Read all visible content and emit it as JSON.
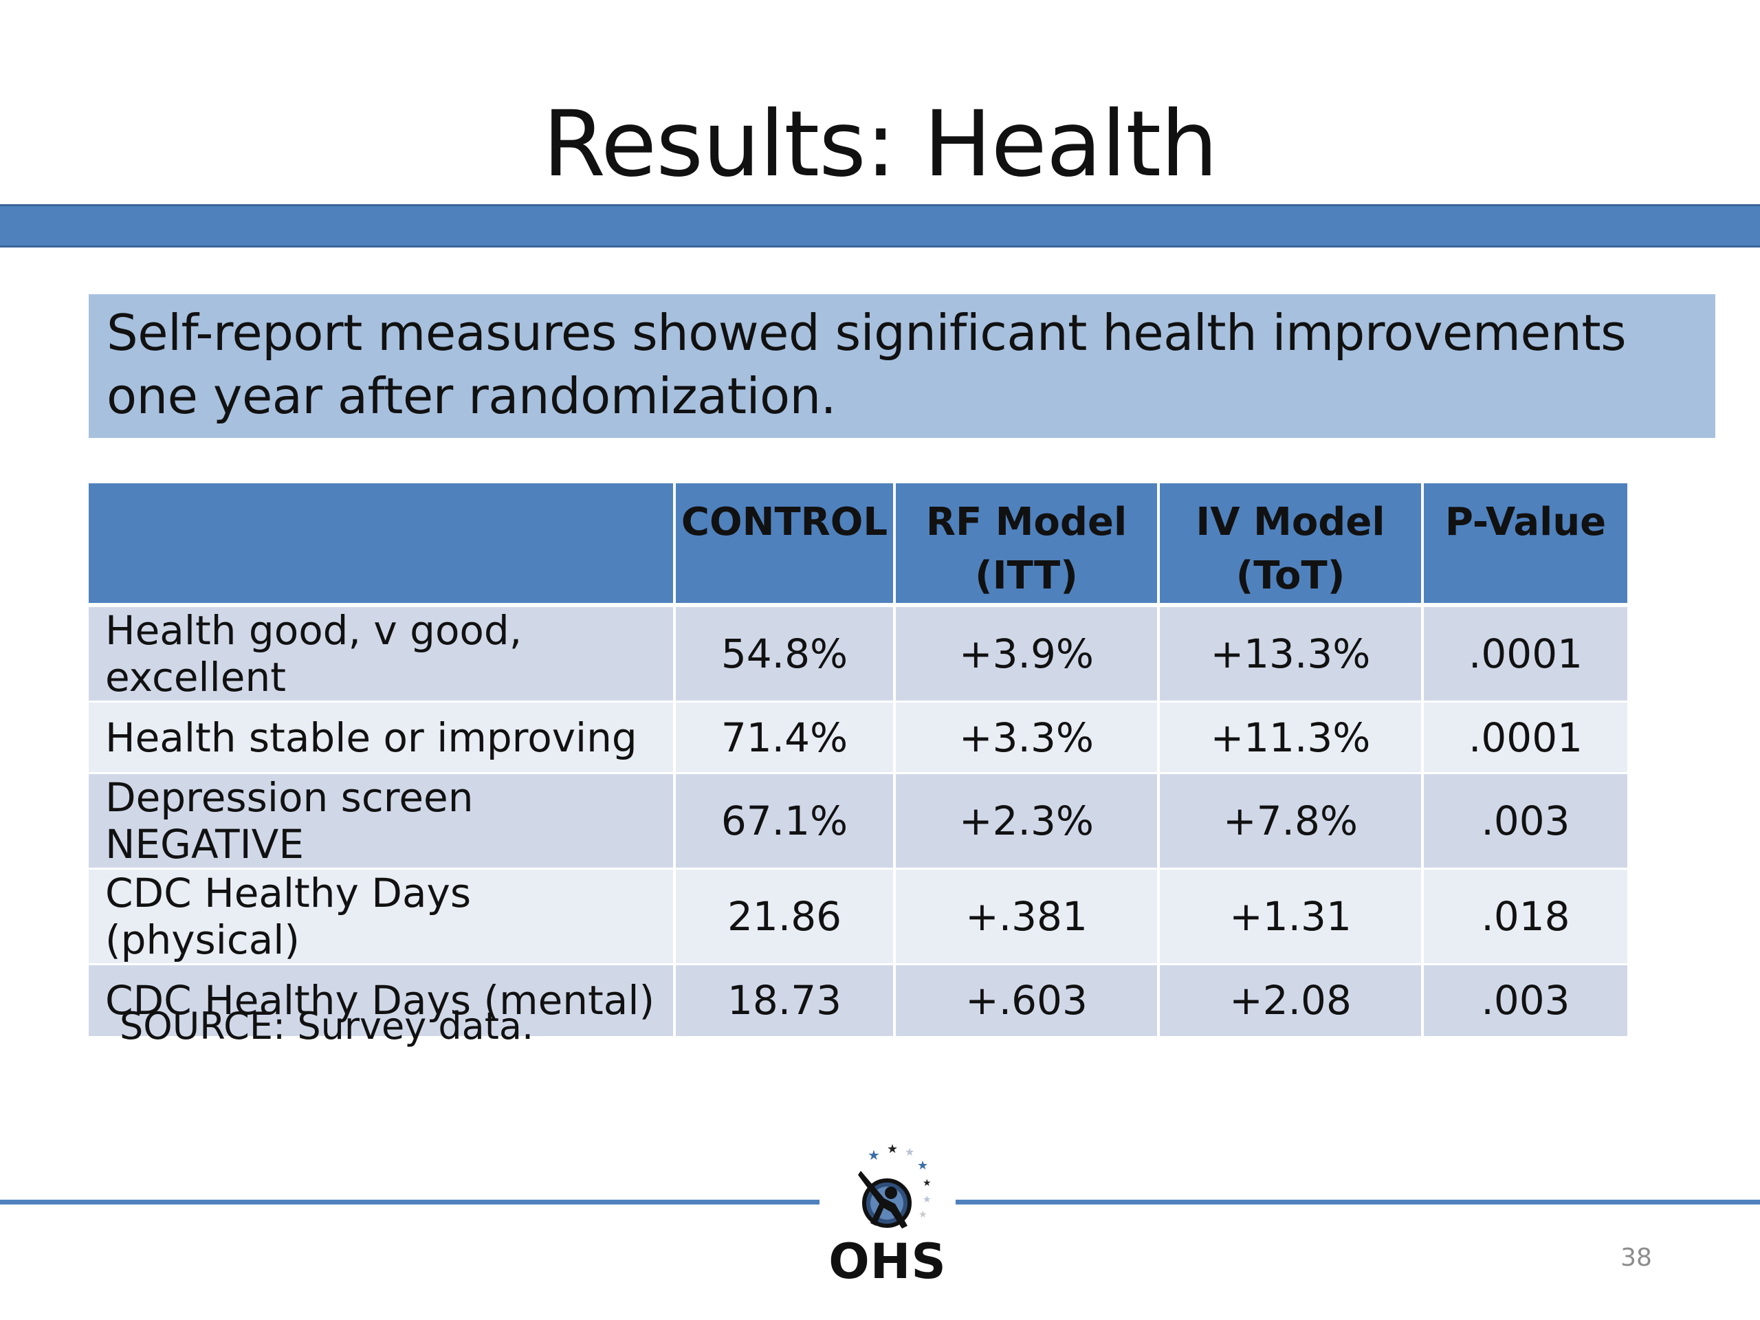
{
  "slide": {
    "title": "Results: Health",
    "callout": "Self-report measures showed significant health improvements one year after randomization.",
    "source": "SOURCE: Survey data.",
    "page_number": "38",
    "logo_text": "OHS"
  },
  "table": {
    "headers": [
      {
        "line1": "",
        "line2": ""
      },
      {
        "line1": "CONTROL",
        "line2": ""
      },
      {
        "line1": "RF Model",
        "line2": "(ITT)"
      },
      {
        "line1": "IV Model",
        "line2": "(ToT)"
      },
      {
        "line1": "P-Value",
        "line2": ""
      }
    ],
    "rows": [
      [
        "Health good, v good, excellent",
        "54.8%",
        "+3.9%",
        "+13.3%",
        ".0001"
      ],
      [
        "Health stable or improving",
        "71.4%",
        "+3.3%",
        "+11.3%",
        ".0001"
      ],
      [
        "Depression screen NEGATIVE",
        "67.1%",
        "+2.3%",
        "+7.8%",
        ".003"
      ],
      [
        "CDC Healthy Days (physical)",
        "21.86",
        "+.381",
        "+1.31",
        ".018"
      ],
      [
        "CDC Healthy Days (mental)",
        "18.73",
        "+.603",
        "+2.08",
        ".003"
      ]
    ]
  },
  "colors": {
    "accent_blue": "#4f81bd",
    "callout_fill": "#a7c0de",
    "row_dark": "#d0d8e8",
    "row_light": "#e9edf4"
  },
  "icons": {
    "logo": "ohs-star-figure-logo-icon"
  }
}
